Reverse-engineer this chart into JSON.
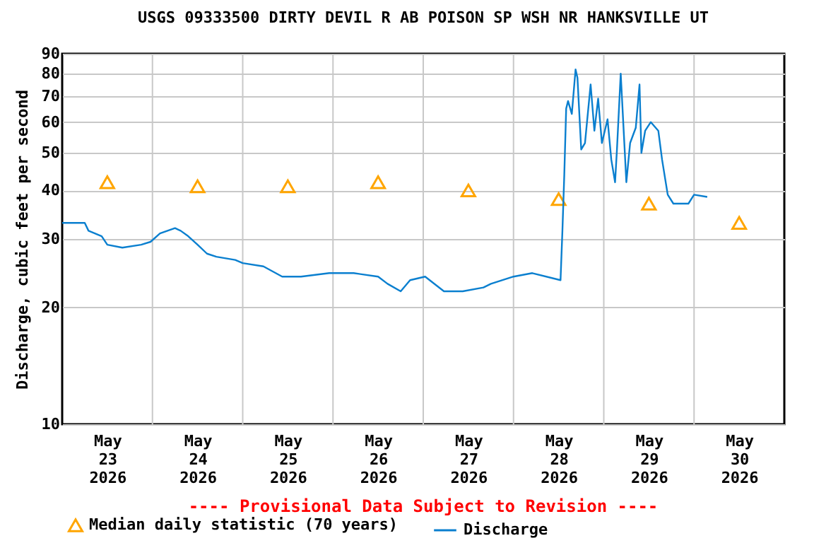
{
  "chart_data": {
    "type": "line",
    "title": "USGS 09333500 DIRTY DEVIL R AB POISON SP WSH NR HANKSVILLE UT",
    "ylabel": "Discharge, cubic feet per second",
    "annotations": [
      "---- Provisional Data Subject to Revision ----"
    ],
    "xlim": [
      "2026-05-23T00:00",
      "2026-05-31T00:00"
    ],
    "xticks": [
      {
        "value": "2026-05-23T12:00",
        "label": "May\n23\n2026"
      },
      {
        "value": "2026-05-24T00:00",
        "label": null
      },
      {
        "value": "2026-05-24T12:00",
        "label": "May\n24\n2026"
      },
      {
        "value": "2026-05-25T00:00",
        "label": null
      },
      {
        "value": "2026-05-25T12:00",
        "label": "May\n25\n2026"
      },
      {
        "value": "2026-05-26T00:00",
        "label": null
      },
      {
        "value": "2026-05-26T12:00",
        "label": "May\n26\n2026"
      },
      {
        "value": "2026-05-27T00:00",
        "label": null
      },
      {
        "value": "2026-05-27T12:00",
        "label": "May\n27\n2026"
      },
      {
        "value": "2026-05-28T00:00",
        "label": null
      },
      {
        "value": "2026-05-28T12:00",
        "label": "May\n28\n2026"
      },
      {
        "value": "2026-05-29T00:00",
        "label": null
      },
      {
        "value": "2026-05-29T12:00",
        "label": "May\n29\n2026"
      },
      {
        "value": "2026-05-30T00:00",
        "label": null
      },
      {
        "value": "2026-05-30T12:00",
        "label": "May\n30\n2026"
      }
    ],
    "ylim": [
      10,
      90
    ],
    "yticks": [
      10,
      20,
      30,
      40,
      50,
      60,
      70,
      80,
      90
    ],
    "log": true,
    "grid": true,
    "legend": "bottom",
    "series": [
      {
        "name": "Median daily statistic (70 years)",
        "type": "scatter",
        "marker": "triangle",
        "color": "#ffa500",
        "x": [
          "2026-05-23T12:00",
          "2026-05-24T12:00",
          "2026-05-25T12:00",
          "2026-05-26T12:00",
          "2026-05-27T12:00",
          "2026-05-28T12:00",
          "2026-05-29T12:00",
          "2026-05-30T12:00"
        ],
        "values": [
          42,
          41,
          41,
          42,
          40,
          38,
          37,
          33
        ]
      },
      {
        "name": "Discharge",
        "type": "line",
        "color": "#0a7fcf",
        "x": [
          "2026-05-23T00:00",
          "2026-05-23T06:00",
          "2026-05-23T07:00",
          "2026-05-23T10:30",
          "2026-05-23T12:00",
          "2026-05-23T16:00",
          "2026-05-23T21:00",
          "2026-05-23T23:30",
          "2026-05-24T02:00",
          "2026-05-24T06:00",
          "2026-05-24T07:30",
          "2026-05-24T09:30",
          "2026-05-24T12:00",
          "2026-05-24T14:30",
          "2026-05-24T17:00",
          "2026-05-24T22:00",
          "2026-05-25T00:00",
          "2026-05-25T05:30",
          "2026-05-25T10:30",
          "2026-05-25T15:30",
          "2026-05-25T23:00",
          "2026-05-26T05:30",
          "2026-05-26T12:00",
          "2026-05-26T14:30",
          "2026-05-26T18:00",
          "2026-05-26T20:30",
          "2026-05-27T00:30",
          "2026-05-27T05:30",
          "2026-05-27T10:30",
          "2026-05-27T16:00",
          "2026-05-27T18:00",
          "2026-05-28T00:00",
          "2026-05-28T05:00",
          "2026-05-28T12:30",
          "2026-05-28T13:00",
          "2026-05-28T13:30",
          "2026-05-28T14:00",
          "2026-05-28T14:30",
          "2026-05-28T15:30",
          "2026-05-28T16:30",
          "2026-05-28T17:00",
          "2026-05-28T18:00",
          "2026-05-28T19:00",
          "2026-05-28T20:30",
          "2026-05-28T21:30",
          "2026-05-28T22:30",
          "2026-05-28T23:30",
          "2026-05-29T01:00",
          "2026-05-29T02:00",
          "2026-05-29T03:00",
          "2026-05-29T03:30",
          "2026-05-29T04:30",
          "2026-05-29T06:00",
          "2026-05-29T07:00",
          "2026-05-29T08:30",
          "2026-05-29T09:30",
          "2026-05-29T10:00",
          "2026-05-29T11:00",
          "2026-05-29T12:30",
          "2026-05-29T14:30",
          "2026-05-29T15:30",
          "2026-05-29T17:00",
          "2026-05-29T18:30",
          "2026-05-29T22:30",
          "2026-05-30T00:00",
          "2026-05-30T03:30"
        ],
        "values": [
          33,
          33,
          31.5,
          30.5,
          29,
          28.5,
          29,
          29.5,
          31,
          32,
          31.5,
          30.5,
          29,
          27.5,
          27,
          26.5,
          26,
          25.5,
          24,
          24,
          24.5,
          24.5,
          24,
          23,
          22,
          23.5,
          24,
          22,
          22,
          22.5,
          23,
          24,
          24.5,
          23.5,
          31.5,
          44,
          65,
          68,
          63,
          82,
          78,
          51,
          53,
          75,
          57,
          69,
          53,
          61,
          48,
          42,
          51,
          80,
          42,
          53,
          58,
          75,
          50,
          57,
          60,
          57,
          48,
          39,
          37,
          37,
          39,
          38.5
        ]
      }
    ]
  }
}
